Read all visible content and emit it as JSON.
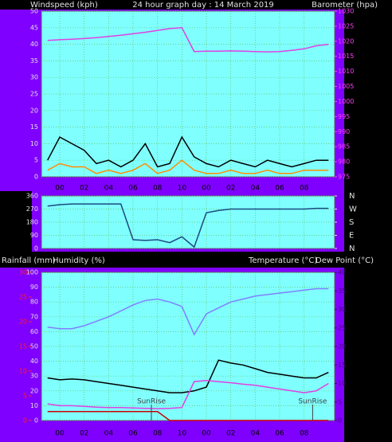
{
  "chart_data": [
    {
      "type": "line",
      "title": "24 hour graph day : 14 March 2019",
      "labels": [
        "Windspeed (kph)",
        "Barometer (hpa)"
      ],
      "categories": [
        null,
        "00",
        null,
        "02",
        null,
        "04",
        null,
        "06",
        null,
        "08",
        null,
        "10",
        null,
        "00",
        null,
        "02",
        null,
        "04",
        null,
        "06",
        null,
        "08",
        null,
        null
      ],
      "series": [
        {
          "color": "#000000",
          "values": [
            5,
            12,
            10,
            8,
            4,
            5,
            3,
            5,
            10,
            3,
            4,
            12,
            6,
            4,
            3,
            5,
            4,
            3,
            5,
            4,
            3,
            4,
            5,
            5
          ]
        },
        {
          "color": "#ff8c00",
          "values": [
            2,
            4,
            3,
            3,
            1,
            2,
            1,
            2,
            4,
            1,
            2,
            5,
            2,
            1,
            1,
            2,
            1,
            1,
            2,
            1,
            1,
            2,
            2,
            2
          ]
        },
        {
          "color": "#e040e0",
          "axis": "y2",
          "values": [
            1020.3,
            1020.5,
            1020.7,
            1020.9,
            1021.2,
            1021.6,
            1022,
            1022.5,
            1023,
            1023.6,
            1024.2,
            1024.5,
            1016.6,
            1016.7,
            1016.7,
            1016.8,
            1016.7,
            1016.6,
            1016.5,
            1016.6,
            1017,
            1017.5,
            1018.5,
            1019
          ]
        }
      ],
      "ylim": [
        0,
        50
      ],
      "yticks": [
        0,
        5,
        10,
        15,
        20,
        25,
        30,
        35,
        40,
        45,
        50
      ],
      "y2lim": [
        975,
        1030
      ],
      "y2ticks": [
        975,
        980,
        985,
        990,
        995,
        1000,
        1005,
        1010,
        1015,
        1020,
        1025,
        1030
      ],
      "grid": true
    },
    {
      "type": "line",
      "categories": [
        null,
        "00",
        null,
        "02",
        null,
        "04",
        null,
        "06",
        null,
        "08",
        null,
        "10",
        null,
        "00",
        null,
        "02",
        null,
        "04",
        null,
        "06",
        null,
        "08",
        null,
        null
      ],
      "series": [
        {
          "color": "#1a4a80",
          "values": [
            290,
            300,
            305,
            305,
            305,
            305,
            305,
            60,
            55,
            60,
            40,
            80,
            10,
            245,
            260,
            270,
            270,
            270,
            270,
            270,
            270,
            270,
            275,
            275
          ]
        }
      ],
      "ylim": [
        0,
        360
      ],
      "yticks": [
        0,
        90,
        180,
        270,
        360
      ],
      "y2lim": [
        0,
        360
      ],
      "y2ticks": [
        {
          "value": 360,
          "label": "N"
        },
        {
          "value": 270,
          "label": "W"
        },
        {
          "value": 180,
          "label": "S"
        },
        {
          "value": 90,
          "label": "E"
        },
        {
          "value": 0,
          "label": "N"
        }
      ],
      "grid": true
    },
    {
      "type": "line",
      "labels": [
        "Rainfall (mm)",
        "Humidity (%)",
        "Temperature (°C)",
        "Dew Point (°C)"
      ],
      "categories": [
        null,
        "00",
        null,
        "02",
        null,
        "04",
        null,
        "06",
        null,
        "08",
        null,
        "10",
        null,
        "00",
        null,
        "02",
        null,
        "04",
        null,
        "06",
        null,
        "08",
        null,
        null
      ],
      "series": [
        {
          "color": "#8080ff",
          "values": [
            63,
            62,
            62,
            64,
            67,
            70,
            74,
            78,
            81,
            82,
            80,
            77,
            58,
            72,
            76,
            80,
            82,
            84,
            85,
            86,
            87,
            88,
            89,
            89
          ]
        },
        {
          "color": "#000000",
          "axis": "y2",
          "values": [
            11.5,
            11,
            11.2,
            11,
            10.5,
            10,
            9.5,
            9,
            8.5,
            8,
            7.5,
            7.5,
            8,
            9,
            16.3,
            15.5,
            15,
            14,
            13,
            12.5,
            12,
            11.5,
            11.5,
            13
          ]
        },
        {
          "color": "#e040e0",
          "axis": "y2",
          "values": [
            4.5,
            4,
            4,
            3.8,
            3.6,
            3.5,
            3.5,
            3.4,
            3.3,
            3.2,
            3.3,
            3.5,
            10.5,
            10.8,
            10.5,
            10.2,
            9.8,
            9.5,
            9,
            8.5,
            8,
            7.5,
            8,
            10
          ]
        },
        {
          "color": "#cc0000",
          "axis": "y3",
          "values": [
            1.8,
            1.8,
            1.8,
            1.8,
            1.8,
            1.8,
            1.8,
            1.8,
            1.8,
            1.8,
            0,
            0,
            0,
            0,
            0,
            0,
            0,
            0,
            0,
            0,
            0,
            0,
            0,
            0
          ]
        }
      ],
      "ylim": [
        0,
        100
      ],
      "yticks": [
        0,
        10,
        20,
        30,
        40,
        50,
        60,
        70,
        80,
        90,
        100
      ],
      "y2lim": [
        0,
        40
      ],
      "y2ticks": [
        0,
        5,
        10,
        15,
        20,
        25,
        30,
        35,
        40
      ],
      "y3lim": [
        0,
        30
      ],
      "y3ticks": [
        0,
        5,
        10,
        15,
        20,
        25,
        30
      ],
      "annotations": [
        "SunRise",
        "SunRise"
      ],
      "grid": true
    }
  ]
}
